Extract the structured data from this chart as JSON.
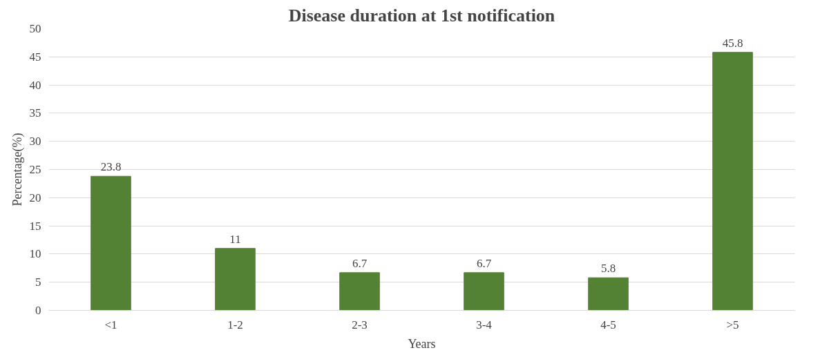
{
  "chart_data": {
    "type": "bar",
    "title": "Disease duration at 1st notification",
    "xlabel": "Years",
    "ylabel": "Percentage(%)",
    "categories": [
      "<1",
      "1-2",
      "2-3",
      "3-4",
      "4-5",
      ">5"
    ],
    "values": [
      23.8,
      11,
      6.7,
      6.7,
      5.8,
      45.8
    ],
    "color": "#548235",
    "ylim": [
      0,
      50
    ],
    "yticks": [
      0,
      5,
      10,
      15,
      20,
      25,
      30,
      35,
      40,
      45,
      50
    ],
    "grid": "y",
    "data_labels": true
  }
}
